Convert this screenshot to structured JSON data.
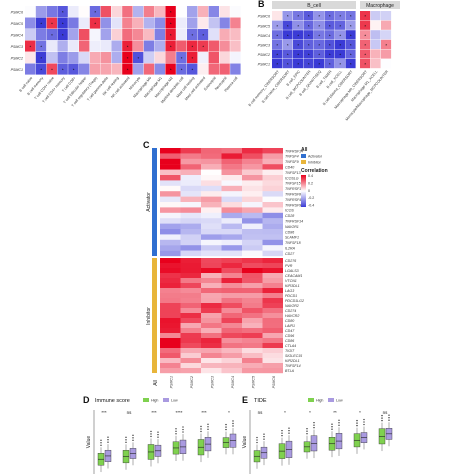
{
  "panel_labels": {
    "b": "B",
    "c": "C",
    "d": "D",
    "e": "E"
  },
  "genes_ab": [
    "PSMC6",
    "PSMC5",
    "PSMC4",
    "PSMC3",
    "PSMC2",
    "PSMC1"
  ],
  "panel_b": {
    "strip_bcell": "B_cell",
    "strip_macro": "Macrophage",
    "bcell_cols": [
      "B cell memory_CIBERSORT",
      "B cell naive_CIBERSORT",
      "B cell_EPIC",
      "B cell_MCPCOUNTER",
      "B cell_QUANTISEQ",
      "B cell_TIMER",
      "B cell_XCELL",
      "B cell plasma_CIBERSORT"
    ],
    "macro_cols": [
      "Macrophage M0_CIBERSORT",
      "Macrophage M1_XCELL",
      "Monocyte/Macrophage_MCPCOUNTER"
    ]
  },
  "panel_a_cols": [
    "B cell naive",
    "B cell memory",
    "T cell CD4+ naive",
    "T cell CD4+ memory",
    "T cell CD8+",
    "T cell follicular helper",
    "T cell regulatory (Tregs)",
    "T cell gamma delta",
    "NK cell resting",
    "NK cell activated",
    "Monocyte",
    "Macrophage M0",
    "Macrophage M1",
    "Macrophage M2",
    "Myeloid dendritic cell",
    "Mast cell resting",
    "Mast cell activated",
    "Eosinophil",
    "Neutrophil",
    "Plasma cell"
  ],
  "panel_c": {
    "legend_all_title": "All",
    "legend_all_items": [
      "Activator",
      "Inhibitor"
    ],
    "legend_all_colors": [
      "#2f6fd0",
      "#e8b53a"
    ],
    "legend_corr_title": "Correlation",
    "legend_corr_ticks": [
      "0.4",
      "0.2",
      "0",
      "-0.2",
      "-0.4"
    ],
    "group_activator": "Activator",
    "group_inhibitor": "Inhibitor",
    "all_label": "All",
    "col_labels": [
      "PSMC1",
      "PSMC2",
      "PSMC3",
      "PSMC4",
      "PSMC5",
      "PSMC6"
    ],
    "activator_rows": [
      "TNFRSF14",
      "TNFSF4",
      "TNFSF9",
      "CD40",
      "TNFSF13",
      "ICOSLG",
      "TNFSF15",
      "TNFRSF18",
      "TNFRSF8",
      "TNFRSF4",
      "TNFRSF9",
      "ICOS",
      "CD28",
      "TNFRSF14",
      "NAV2R1",
      "CD86",
      "SLAMF1",
      "TNFSF18",
      "IL2RA",
      "CD27"
    ],
    "inhibitor_rows": [
      "CD276",
      "PVR",
      "LGALS3",
      "CEACAM1",
      "VTCN1",
      "KIR3DL1",
      "LAG3",
      "PDCD1",
      "PDCD1LG2",
      "NAV2R2",
      "CD274",
      "HAVCR2",
      "CD80",
      "LAIR1",
      "CD47",
      "CD96",
      "CD86",
      "CTLA4",
      "TIGIT",
      "SIGLEC15",
      "KIR2DL1",
      "TNFSF14",
      "BTLA"
    ],
    "colors": {
      "positive": "#e8001c",
      "negative": "#3b3bd6"
    }
  },
  "panel_d": {
    "title": "Immune score",
    "legend": [
      "High",
      "Low"
    ],
    "ylabel": "Value",
    "sig": [
      "***",
      "ns",
      "***",
      "****",
      "***",
      "*"
    ]
  },
  "panel_e": {
    "title": "TIDE",
    "legend": [
      "High",
      "Low"
    ],
    "ylabel": "Value",
    "sig": [
      "ns",
      "*",
      "*",
      "**",
      "*",
      "ns"
    ]
  },
  "box_colors": {
    "high": "#7fd14f",
    "low": "#a99ae0"
  }
}
